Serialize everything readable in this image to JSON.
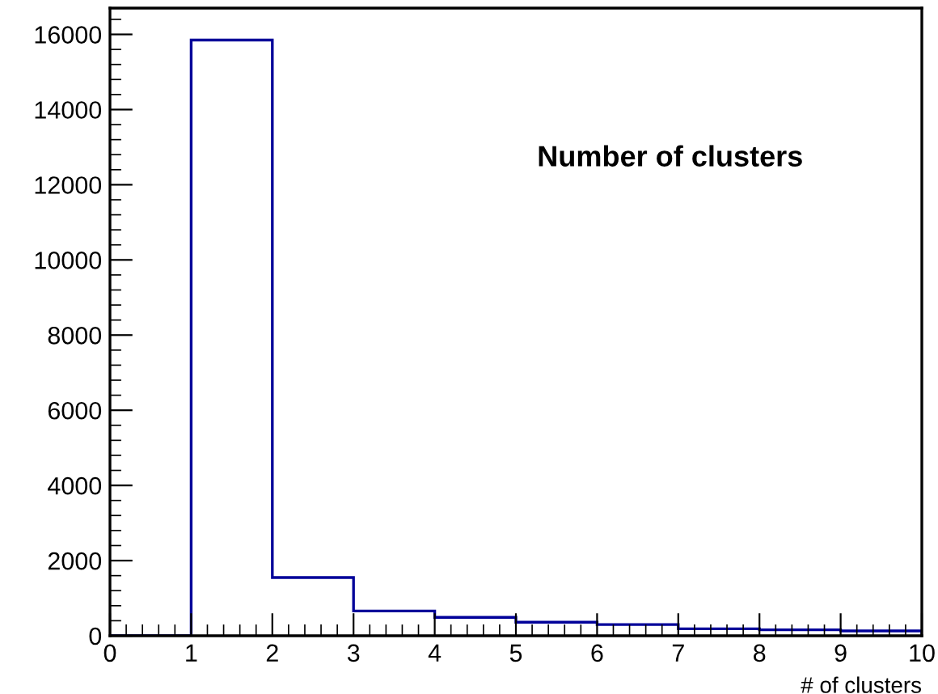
{
  "chart_data": {
    "type": "histogram",
    "title": "Number of clusters",
    "xlabel": "# of clusters",
    "bins": [
      0,
      1,
      2,
      3,
      4,
      5,
      6,
      7,
      8,
      9,
      10
    ],
    "values": [
      0,
      15850,
      1550,
      660,
      490,
      360,
      300,
      185,
      160,
      130
    ],
    "color": "#000099",
    "xlim": [
      0,
      10
    ],
    "xticks": [
      0,
      1,
      2,
      3,
      4,
      5,
      6,
      7,
      8,
      9,
      10
    ],
    "ylim": [
      0,
      16700
    ],
    "yticks": [
      0,
      2000,
      4000,
      6000,
      8000,
      10000,
      12000,
      14000,
      16000
    ],
    "grid": false,
    "legend": false
  }
}
